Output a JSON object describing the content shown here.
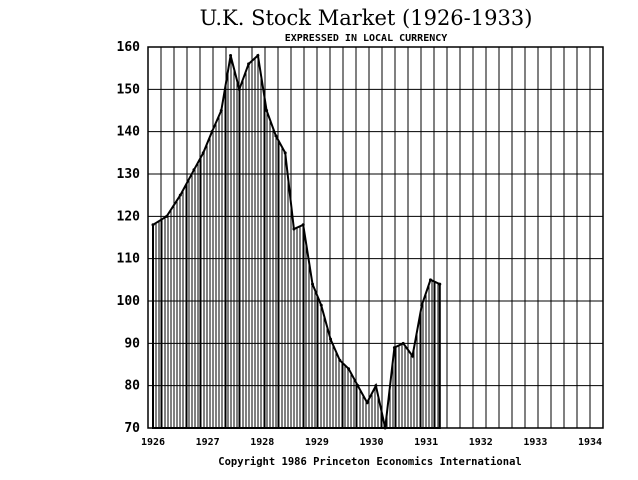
{
  "chart_data": {
    "type": "area",
    "title": "U.K. Stock Market (1926-1933)",
    "subtitle": "EXPRESSED IN LOCAL CURRENCY",
    "footer": "Copyright 1986 Princeton Economics International",
    "xlabel": "",
    "ylabel": "",
    "ylim": [
      70,
      160
    ],
    "xlim": [
      1926,
      1934
    ],
    "grid": true,
    "yticks": [
      160,
      150,
      140,
      130,
      120,
      110,
      100,
      90,
      80,
      70
    ],
    "xticks": [
      1926,
      1927,
      1928,
      1929,
      1930,
      1931,
      1932,
      1933,
      1934
    ],
    "series": [
      {
        "points": [
          [
            1926.0,
            118
          ],
          [
            1926.25,
            120
          ],
          [
            1926.5,
            125
          ],
          [
            1926.75,
            131
          ],
          [
            1926.92,
            135
          ],
          [
            1927.08,
            140
          ],
          [
            1927.25,
            145
          ],
          [
            1927.42,
            158
          ],
          [
            1927.58,
            150
          ],
          [
            1927.75,
            156
          ],
          [
            1927.92,
            158
          ],
          [
            1928.08,
            145
          ],
          [
            1928.25,
            139
          ],
          [
            1928.42,
            135
          ],
          [
            1928.58,
            117
          ],
          [
            1928.75,
            118
          ],
          [
            1928.92,
            104
          ],
          [
            1929.08,
            99
          ],
          [
            1929.25,
            91
          ],
          [
            1929.42,
            86
          ],
          [
            1929.58,
            84
          ],
          [
            1929.75,
            80
          ],
          [
            1929.92,
            76
          ],
          [
            1930.08,
            80
          ],
          [
            1930.25,
            70
          ],
          [
            1930.42,
            89
          ],
          [
            1930.58,
            90
          ],
          [
            1930.75,
            87
          ],
          [
            1930.92,
            99
          ],
          [
            1931.08,
            105
          ],
          [
            1931.25,
            104
          ]
        ]
      }
    ]
  }
}
